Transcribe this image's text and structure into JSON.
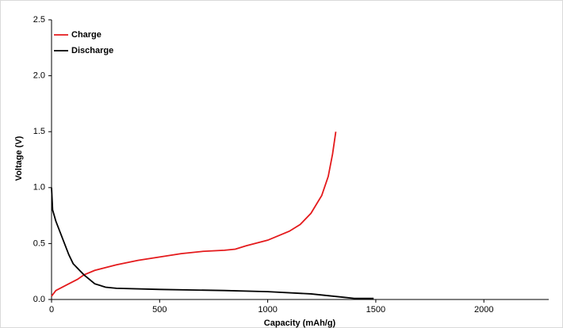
{
  "chart_data": {
    "type": "line",
    "x_label": "Capacity (mAh/g)",
    "y_label": "Voltage (V)",
    "xlim": [
      0,
      2300
    ],
    "xticks": [
      0,
      500,
      1000,
      1500,
      2000
    ],
    "ylim": [
      0,
      2.5
    ],
    "yticks": [
      {
        "value": 0,
        "label": "0.0"
      },
      0.5,
      {
        "value": 1,
        "label": "1.0"
      },
      1.5,
      {
        "value": 2,
        "label": "2.0"
      },
      2.5
    ],
    "legend": "top-left",
    "series": [
      {
        "name": "Charge",
        "color": "#e41a1c",
        "x": [
          0,
          20,
          50,
          80,
          120,
          150,
          200,
          300,
          400,
          500,
          600,
          700,
          800,
          850,
          900,
          1000,
          1100,
          1150,
          1200,
          1250,
          1280,
          1300,
          1315
        ],
        "values": [
          0.03,
          0.08,
          0.11,
          0.14,
          0.18,
          0.22,
          0.26,
          0.31,
          0.35,
          0.38,
          0.41,
          0.43,
          0.44,
          0.45,
          0.48,
          0.53,
          0.61,
          0.67,
          0.77,
          0.93,
          1.1,
          1.3,
          1.5
        ]
      },
      {
        "name": "Discharge",
        "color": "#000000",
        "x": [
          0,
          5,
          20,
          40,
          60,
          80,
          100,
          150,
          200,
          250,
          300,
          500,
          800,
          1000,
          1200,
          1350,
          1400,
          1490
        ],
        "values": [
          1.0,
          0.8,
          0.7,
          0.6,
          0.5,
          0.4,
          0.32,
          0.22,
          0.14,
          0.11,
          0.1,
          0.09,
          0.08,
          0.07,
          0.05,
          0.02,
          0.01,
          0.01
        ]
      }
    ]
  }
}
